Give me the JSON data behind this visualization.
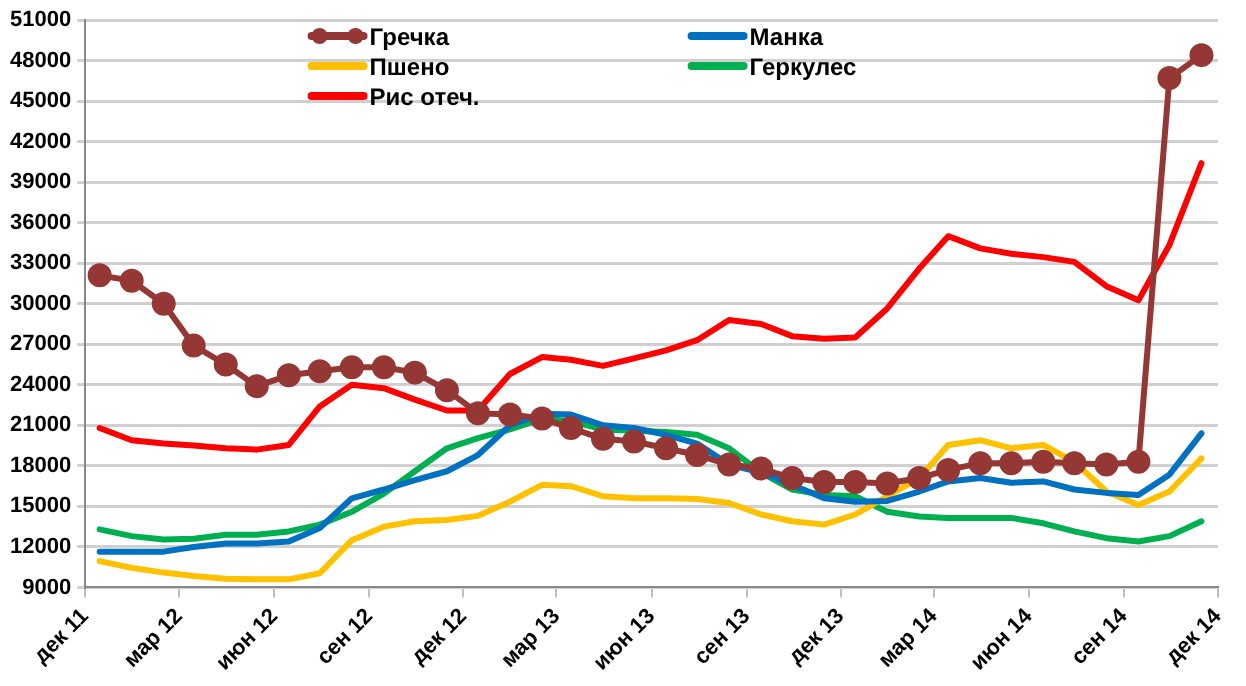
{
  "chart_data": {
    "type": "line",
    "x": [
      "2011-12-15",
      "2012-01-15",
      "2012-02-15",
      "2012-03-15",
      "2012-04-15",
      "2012-05-15",
      "2012-06-15",
      "2012-07-15",
      "2012-08-15",
      "2012-09-15",
      "2012-10-15",
      "2012-11-15",
      "2012-12-15",
      "2013-01-15",
      "2013-02-15",
      "2013-03-15",
      "2013-04-15",
      "2013-05-15",
      "2013-06-15",
      "2013-07-15",
      "2013-08-15",
      "2013-09-15",
      "2013-10-15",
      "2013-11-15",
      "2013-12-15",
      "2014-01-15",
      "2014-02-15",
      "2014-03-15",
      "2014-04-15",
      "2014-05-15",
      "2014-06-15",
      "2014-07-15",
      "2014-08-15",
      "2014-09-15",
      "2014-10-15",
      "2014-11-15"
    ],
    "series": [
      {
        "name": "Гречка",
        "color": "#953735",
        "marker": "circle",
        "values": [
          32100,
          31700,
          30000,
          26900,
          25500,
          23900,
          24700,
          25000,
          25300,
          25300,
          24900,
          23600,
          21900,
          21800,
          21500,
          20800,
          20000,
          19800,
          19300,
          18800,
          18100,
          17800,
          17100,
          16800,
          16800,
          16700,
          17100,
          17700,
          18200,
          18200,
          18300,
          18200,
          18100,
          18300,
          46700,
          48400
        ]
      },
      {
        "name": "Манка",
        "color": "#0070c0",
        "values": [
          11650,
          11650,
          11650,
          12000,
          12250,
          12250,
          12400,
          13400,
          15600,
          16250,
          16950,
          17600,
          18800,
          21000,
          21850,
          21800,
          21000,
          20800,
          20300,
          19650,
          18100,
          17500,
          16600,
          15600,
          15350,
          15400,
          16100,
          16850,
          17100,
          16750,
          16850,
          16250,
          16000,
          15850,
          17350,
          20400
        ]
      },
      {
        "name": "Пшено",
        "color": "#ffc000",
        "values": [
          10950,
          10450,
          10100,
          9850,
          9650,
          9600,
          9600,
          10050,
          12500,
          13500,
          13900,
          14000,
          14300,
          15350,
          16600,
          16500,
          15750,
          15600,
          15600,
          15550,
          15250,
          14400,
          13900,
          13650,
          14400,
          15750,
          17100,
          19550,
          19900,
          19300,
          19550,
          18300,
          16100,
          15100,
          16100,
          18550
        ]
      },
      {
        "name": "Геркулес",
        "color": "#00b050",
        "values": [
          13300,
          12800,
          12550,
          12600,
          12900,
          12900,
          13150,
          13650,
          14600,
          15950,
          17600,
          19300,
          20050,
          20700,
          21500,
          21300,
          20700,
          20600,
          20500,
          20300,
          19300,
          17500,
          16250,
          15850,
          15750,
          14600,
          14250,
          14150,
          14150,
          14150,
          13750,
          13150,
          12650,
          12400,
          12800,
          13900
        ]
      },
      {
        "name": "Рис отеч.",
        "color": "#ff0000",
        "values": [
          20800,
          19900,
          19650,
          19500,
          19300,
          19200,
          19550,
          22400,
          24000,
          23750,
          22900,
          22100,
          22100,
          24800,
          26050,
          25850,
          25400,
          25950,
          26550,
          27300,
          28800,
          28500,
          27600,
          27400,
          27500,
          29650,
          32600,
          35000,
          34100,
          33700,
          33450,
          33100,
          31300,
          30250,
          34350,
          40400
        ]
      }
    ],
    "xlim": [
      "2011-12-01",
      "2014-12-01"
    ],
    "xticks": [
      {
        "value": "2011-12-01",
        "label": "дек 11"
      },
      {
        "value": "2012-03-01",
        "label": "мар 12"
      },
      {
        "value": "2012-06-01",
        "label": "июн 12"
      },
      {
        "value": "2012-09-01",
        "label": "сен 12"
      },
      {
        "value": "2012-12-01",
        "label": "дек 12"
      },
      {
        "value": "2013-03-01",
        "label": "мар 13"
      },
      {
        "value": "2013-06-01",
        "label": "июн 13"
      },
      {
        "value": "2013-09-01",
        "label": "сен 13"
      },
      {
        "value": "2013-12-01",
        "label": "дек 13"
      },
      {
        "value": "2014-03-01",
        "label": "мар 14"
      },
      {
        "value": "2014-06-01",
        "label": "июн 14"
      },
      {
        "value": "2014-09-01",
        "label": "сен 14"
      },
      {
        "value": "2014-12-01",
        "label": "дек 14"
      }
    ],
    "ylim": [
      9000,
      51000
    ],
    "yticks": [
      9000,
      12000,
      15000,
      18000,
      21000,
      24000,
      27000,
      30000,
      33000,
      36000,
      39000,
      42000,
      45000,
      48000,
      51000
    ],
    "grid": "y",
    "legend": "top",
    "marker": "none",
    "line_style": "solid"
  }
}
